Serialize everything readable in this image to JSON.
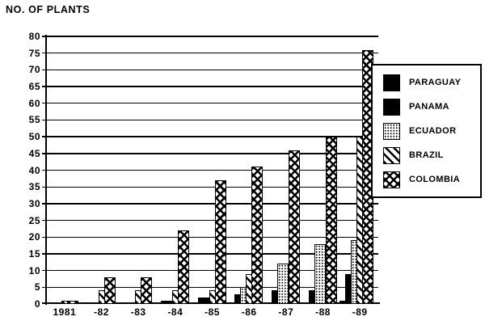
{
  "title": "NO. OF PLANTS",
  "chart_data": {
    "type": "bar",
    "title": "NO. OF PLANTS",
    "categories": [
      "1981",
      "-82",
      "-83",
      "-84",
      "-85",
      "-86",
      "-87",
      "-88",
      "-89"
    ],
    "series": [
      {
        "name": "PARAGUAY",
        "pattern": "solid-black",
        "values": [
          0,
          0,
          0,
          0,
          0,
          0,
          0,
          0,
          1
        ]
      },
      {
        "name": "PANAMA",
        "pattern": "solid-black",
        "values": [
          0,
          0,
          0,
          1,
          2,
          3,
          4,
          4,
          9
        ]
      },
      {
        "name": "ECUADOR",
        "pattern": "dots",
        "values": [
          0,
          0,
          0,
          0,
          0,
          5,
          12,
          18,
          19
        ]
      },
      {
        "name": "BRAZIL",
        "pattern": "diagonal",
        "values": [
          1,
          4,
          4,
          4,
          4,
          9,
          0,
          0,
          50
        ]
      },
      {
        "name": "COLOMBIA",
        "pattern": "crosshatch",
        "values": [
          1,
          8,
          8,
          22,
          37,
          41,
          46,
          50,
          76
        ]
      }
    ],
    "ylim": [
      0,
      80
    ],
    "ytick_step": 5,
    "grid": true,
    "legend_position": "right",
    "bar_style": "overlapped-group",
    "colors": {
      "ink": "#000000",
      "paper": "#ffffff"
    }
  }
}
